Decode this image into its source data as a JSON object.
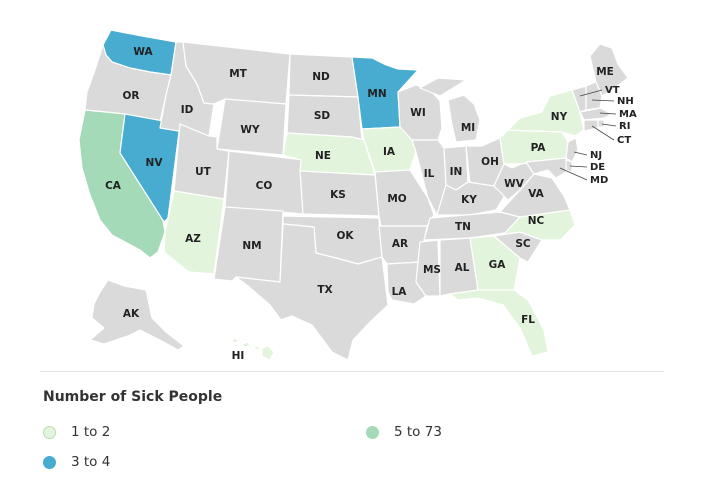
{
  "colors": {
    "no_data": "#dadadb",
    "low": "#e2f4dc",
    "mid": "#48acd1",
    "high": "#a4dab7",
    "outline": "#ffffff"
  },
  "legend": {
    "title": "Number of Sick People",
    "items": [
      {
        "label": "1 to 2",
        "color": "#e2f4dc"
      },
      {
        "label": "3 to 4",
        "color": "#48acd1"
      },
      {
        "label": "5 to 73",
        "color": "#a4dab7"
      }
    ]
  },
  "states": [
    {
      "abbr": "WA",
      "category": "mid"
    },
    {
      "abbr": "OR",
      "category": "none"
    },
    {
      "abbr": "CA",
      "category": "high"
    },
    {
      "abbr": "NV",
      "category": "mid"
    },
    {
      "abbr": "ID",
      "category": "none"
    },
    {
      "abbr": "MT",
      "category": "none"
    },
    {
      "abbr": "WY",
      "category": "none"
    },
    {
      "abbr": "UT",
      "category": "none"
    },
    {
      "abbr": "AZ",
      "category": "low"
    },
    {
      "abbr": "CO",
      "category": "none"
    },
    {
      "abbr": "NM",
      "category": "none"
    },
    {
      "abbr": "ND",
      "category": "none"
    },
    {
      "abbr": "SD",
      "category": "none"
    },
    {
      "abbr": "NE",
      "category": "low"
    },
    {
      "abbr": "KS",
      "category": "none"
    },
    {
      "abbr": "OK",
      "category": "none"
    },
    {
      "abbr": "TX",
      "category": "none"
    },
    {
      "abbr": "MN",
      "category": "mid"
    },
    {
      "abbr": "IA",
      "category": "low"
    },
    {
      "abbr": "MO",
      "category": "none"
    },
    {
      "abbr": "AR",
      "category": "none"
    },
    {
      "abbr": "LA",
      "category": "none"
    },
    {
      "abbr": "WI",
      "category": "none"
    },
    {
      "abbr": "IL",
      "category": "none"
    },
    {
      "abbr": "MI",
      "category": "none"
    },
    {
      "abbr": "IN",
      "category": "none"
    },
    {
      "abbr": "OH",
      "category": "none"
    },
    {
      "abbr": "KY",
      "category": "none"
    },
    {
      "abbr": "TN",
      "category": "none"
    },
    {
      "abbr": "MS",
      "category": "none"
    },
    {
      "abbr": "AL",
      "category": "none"
    },
    {
      "abbr": "GA",
      "category": "low"
    },
    {
      "abbr": "FL",
      "category": "low"
    },
    {
      "abbr": "SC",
      "category": "none"
    },
    {
      "abbr": "NC",
      "category": "low"
    },
    {
      "abbr": "VA",
      "category": "none"
    },
    {
      "abbr": "WV",
      "category": "none"
    },
    {
      "abbr": "PA",
      "category": "low"
    },
    {
      "abbr": "NY",
      "category": "low"
    },
    {
      "abbr": "ME",
      "category": "none"
    },
    {
      "abbr": "VT",
      "category": "none"
    },
    {
      "abbr": "NH",
      "category": "none"
    },
    {
      "abbr": "MA",
      "category": "none"
    },
    {
      "abbr": "RI",
      "category": "none"
    },
    {
      "abbr": "CT",
      "category": "none"
    },
    {
      "abbr": "NJ",
      "category": "none"
    },
    {
      "abbr": "DE",
      "category": "none"
    },
    {
      "abbr": "MD",
      "category": "none"
    },
    {
      "abbr": "AK",
      "category": "none"
    },
    {
      "abbr": "HI",
      "category": "low"
    }
  ]
}
